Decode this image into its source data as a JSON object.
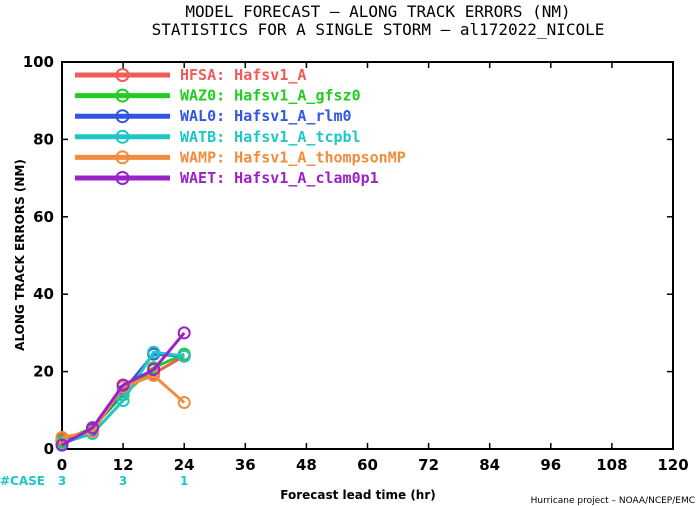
{
  "chart_data": {
    "type": "line",
    "title": "MODEL FORECAST – ALONG TRACK ERRORS (NM)",
    "subtitle": "STATISTICS FOR A SINGLE STORM – al172022_NICOLE",
    "xlabel": "Forecast lead time (hr)",
    "ylabel": "ALONG TRACK ERRORS (NM)",
    "xlim": [
      0,
      120
    ],
    "ylim": [
      0,
      100
    ],
    "x_ticks": [
      "0",
      "12",
      "24",
      "36",
      "48",
      "60",
      "72",
      "84",
      "96",
      "108",
      "120"
    ],
    "y_ticks": [
      "0",
      "20",
      "40",
      "60",
      "80",
      "100"
    ],
    "grid": false,
    "legend_position": "top-left",
    "x": [
      0,
      6,
      12,
      18,
      24
    ],
    "series": [
      {
        "name": "HFSA: Hafsv1_A",
        "color": "#f25a5a",
        "values": [
          2.5,
          5.0,
          16.5,
          19.5,
          24.0
        ]
      },
      {
        "name": "WAZ0: Hafsv1_A_gfsz0",
        "color": "#22cc22",
        "values": [
          2.0,
          5.5,
          14.0,
          21.0,
          24.5
        ]
      },
      {
        "name": "WAL0: Hafsv1_A_rlm0",
        "color": "#3355e6",
        "values": [
          1.5,
          5.0,
          15.0,
          24.5,
          24.0
        ]
      },
      {
        "name": "WATB: Hafsv1_A_tcpbl",
        "color": "#1ec6c6",
        "values": [
          1.5,
          4.0,
          12.5,
          25.0,
          24.0
        ]
      },
      {
        "name": "WAMP: Hafsv1_A_thompsonMP",
        "color": "#f28c3c",
        "values": [
          3.0,
          4.5,
          16.0,
          19.0,
          12.0
        ]
      },
      {
        "name": "WAET: Hafsv1_A_clam0p1",
        "color": "#9a22c8",
        "values": [
          1.0,
          5.5,
          16.5,
          20.5,
          30.0
        ]
      }
    ],
    "cases": {
      "label": "#CASE",
      "values": [
        {
          "x": 0,
          "n": "3"
        },
        {
          "x": 12,
          "n": "3"
        },
        {
          "x": 24,
          "n": "1"
        }
      ]
    },
    "credit": "Hurricane project – NOAA/NCEP/EMC"
  }
}
